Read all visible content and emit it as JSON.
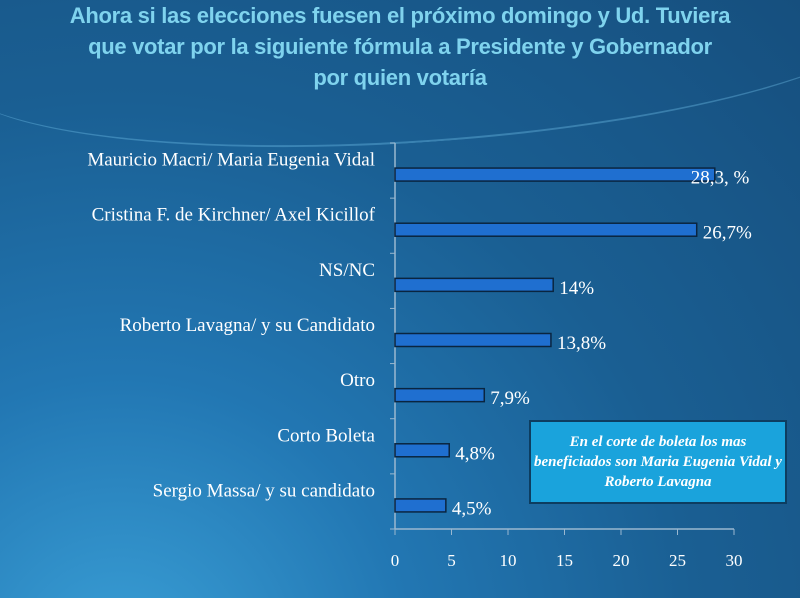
{
  "chart_data": {
    "type": "bar",
    "orientation": "horizontal",
    "title_lines": [
      "Ahora si las elecciones fuesen el próximo domingo y Ud. Tuviera",
      "que votar por la siguiente fórmula a Presidente y Gobernador",
      "por quien votaría"
    ],
    "categories": [
      "Mauricio Macri/ Maria Eugenia Vidal",
      "Cristina F. de Kirchner/ Axel Kicillof",
      "NS/NC",
      "Roberto Lavagna/ y su Candidato",
      "Otro",
      "Corto Boleta",
      "Sergio Massa/ y su candidato"
    ],
    "values": [
      28.3,
      26.7,
      14,
      13.8,
      7.9,
      4.8,
      4.5
    ],
    "data_labels": [
      "28,3, %",
      "26,7%",
      "14%",
      "13,8%",
      "7,9%",
      "4,8%",
      "4,5%"
    ],
    "xlim": [
      0,
      30
    ],
    "xticks": [
      "0",
      "5",
      "10",
      "15",
      "20",
      "25",
      "30"
    ],
    "grid": false,
    "legend": "none",
    "bar_color": "#1f6fd0",
    "annotation": "En el corte de boleta los mas beneficiados son Maria Eugenia Vidal  y Roberto Lavagna"
  }
}
